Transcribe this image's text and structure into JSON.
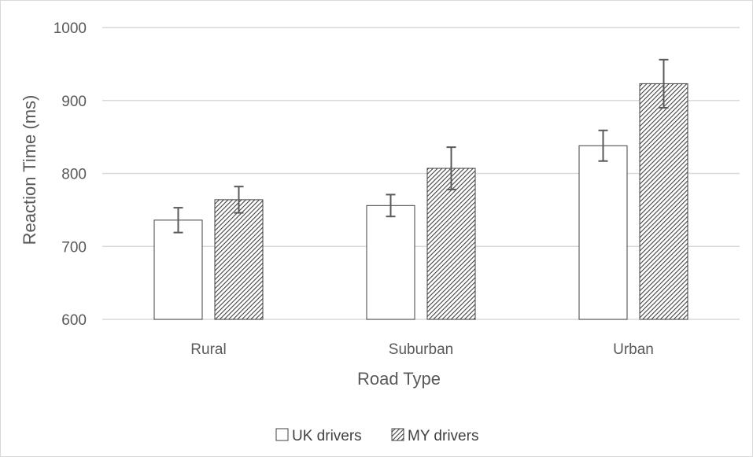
{
  "chart_data": {
    "type": "bar",
    "xlabel": "Road Type",
    "ylabel": "Reaction Time (ms)",
    "ylim": [
      600,
      1000
    ],
    "yticks": [
      600,
      700,
      800,
      900,
      1000
    ],
    "grid": "horizontal",
    "legend_position": "bottom",
    "categories": [
      "Rural",
      "Suburban",
      "Urban"
    ],
    "series": [
      {
        "name": "UK drivers",
        "pattern": "solid-white",
        "values": [
          736,
          756,
          838
        ],
        "error": [
          [
            719,
            753
          ],
          [
            741,
            771
          ],
          [
            817,
            859
          ]
        ]
      },
      {
        "name": "MY drivers",
        "pattern": "diagonal-hatch",
        "values": [
          764,
          807,
          923
        ],
        "error": [
          [
            746,
            782
          ],
          [
            778,
            836
          ],
          [
            890,
            956
          ]
        ]
      }
    ],
    "colors": {
      "bar_stroke": "#404040",
      "grid": "#d9d9d9",
      "error_bar": "#595959",
      "text": "#595959"
    }
  }
}
